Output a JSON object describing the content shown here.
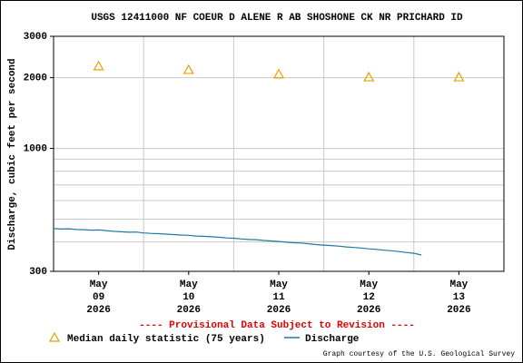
{
  "chart_data": {
    "type": "line",
    "title": "USGS 12411000 NF COEUR D ALENE R AB SHOSHONE CK NR PRICHARD ID",
    "ylabel": "Discharge, cubic feet per second",
    "annotation": "---- Provisional Data Subject to Revision ----",
    "credit": "Graph courtesy of the U.S. Geological Survey",
    "log_scale": true,
    "grid": true,
    "ylim": [
      300,
      3000
    ],
    "yticks": [
      300,
      1000,
      2000,
      3000
    ],
    "minor_yticks": [
      400,
      500,
      600,
      700,
      800,
      900
    ],
    "xlim": [
      "2026-05-09T00:00",
      "2026-05-14T00:00"
    ],
    "xgrid": [
      "2026-05-10T00:00",
      "2026-05-11T00:00",
      "2026-05-12T00:00",
      "2026-05-13T00:00"
    ],
    "xticks": [
      {
        "value": "2026-05-09T12:00",
        "label": [
          "May",
          "09",
          "2026"
        ]
      },
      {
        "value": "2026-05-10T12:00",
        "label": [
          "May",
          "10",
          "2026"
        ]
      },
      {
        "value": "2026-05-11T12:00",
        "label": [
          "May",
          "11",
          "2026"
        ]
      },
      {
        "value": "2026-05-12T12:00",
        "label": [
          "May",
          "12",
          "2026"
        ]
      },
      {
        "value": "2026-05-13T12:00",
        "label": [
          "May",
          "13",
          "2026"
        ]
      }
    ],
    "series": [
      {
        "name": "Median daily statistic (75 years)",
        "color": "#e8a000",
        "marker": "triangle",
        "x": [
          "2026-05-09T12:00",
          "2026-05-10T12:00",
          "2026-05-11T12:00",
          "2026-05-12T12:00",
          "2026-05-13T12:00"
        ],
        "values": [
          2240,
          2160,
          2070,
          2010,
          2010
        ]
      },
      {
        "name": "Discharge",
        "color": "#1f78a8",
        "marker": "line",
        "start": "2026-05-09T00:00",
        "step_hours": 2,
        "values": [
          456,
          454,
          455,
          452,
          451,
          449,
          450,
          447,
          444,
          442,
          440,
          441,
          437,
          435,
          434,
          432,
          430,
          428,
          427,
          424,
          423,
          421,
          419,
          416,
          415,
          412,
          410,
          409,
          406,
          404,
          402,
          399,
          397,
          396,
          393,
          390,
          388,
          386,
          384,
          381,
          379,
          377,
          374,
          372,
          369,
          367,
          364,
          361,
          358,
          352
        ]
      }
    ]
  }
}
